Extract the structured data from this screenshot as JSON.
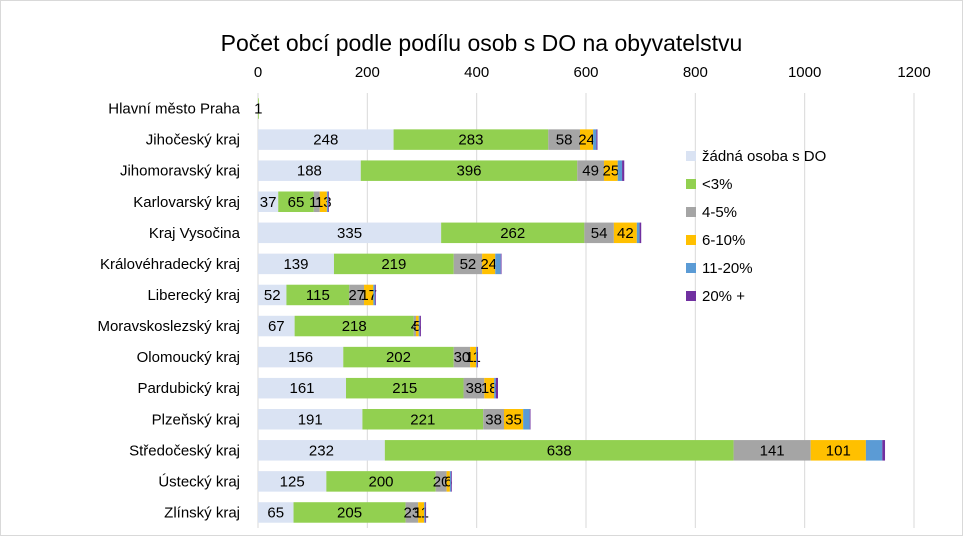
{
  "chart_data": {
    "type": "bar",
    "orientation": "horizontal",
    "stacked": true,
    "title": "Počet obcí podle podílu osob s DO na obyvatelstvu",
    "xlim": [
      0,
      1200
    ],
    "xticks": [
      0,
      200,
      400,
      600,
      800,
      1000,
      1200
    ],
    "grid": true,
    "legend_position": "right",
    "categories": [
      "Hlavní město Praha",
      "Jihočeský kraj",
      "Jihomoravský kraj",
      "Karlovarský kraj",
      "Kraj Vysočina",
      "Královéhradecký kraj",
      "Liberecký kraj",
      "Moravskoslezský kraj",
      "Olomoucký kraj",
      "Pardubický kraj",
      "Plzeňský kraj",
      "Středočeský kraj",
      "Ústecký kraj",
      "Zlínský kraj"
    ],
    "series": [
      {
        "name": "žádná osoba s DO",
        "color": "#dae3f3",
        "values": [
          0,
          248,
          188,
          37,
          335,
          139,
          52,
          67,
          156,
          161,
          191,
          232,
          125,
          65
        ],
        "labels": [
          "",
          "248",
          "188",
          "37",
          "335",
          "139",
          "52",
          "67",
          "156",
          "161",
          "191",
          "232",
          "125",
          "65"
        ]
      },
      {
        "name": "<3%",
        "color": "#92d050",
        "values": [
          1,
          283,
          396,
          65,
          262,
          219,
          115,
          218,
          202,
          215,
          221,
          638,
          200,
          205
        ],
        "labels": [
          "1",
          "283",
          "396",
          "65",
          "262",
          "219",
          "115",
          "218",
          "202",
          "215",
          "221",
          "638",
          "200",
          "205"
        ]
      },
      {
        "name": "4-5%",
        "color": "#a5a5a5",
        "values": [
          0,
          58,
          49,
          11,
          54,
          52,
          27,
          4,
          30,
          38,
          38,
          141,
          20,
          23
        ],
        "labels": [
          "",
          "58",
          "49",
          "11",
          "54",
          "52",
          "27",
          "4",
          "30",
          "38",
          "38",
          "141",
          "20",
          "23"
        ]
      },
      {
        "name": "6-10%",
        "color": "#ffc000",
        "values": [
          0,
          24,
          25,
          13,
          42,
          24,
          17,
          5,
          11,
          18,
          35,
          101,
          6,
          11
        ],
        "labels": [
          "",
          "24",
          "25",
          "13",
          "42",
          "24",
          "17",
          "5",
          "11",
          "18",
          "35",
          "101",
          "6",
          "11"
        ]
      },
      {
        "name": "11-20%",
        "color": "#5b9bd5",
        "values": [
          0,
          6,
          8,
          2,
          5,
          10,
          3,
          2,
          2,
          3,
          12,
          30,
          2,
          2
        ],
        "labels": []
      },
      {
        "name": "20% +",
        "color": "#7030a0",
        "values": [
          0,
          2,
          4,
          1,
          3,
          1,
          1,
          2,
          1,
          4,
          1,
          5,
          1,
          1
        ],
        "labels": []
      }
    ]
  }
}
